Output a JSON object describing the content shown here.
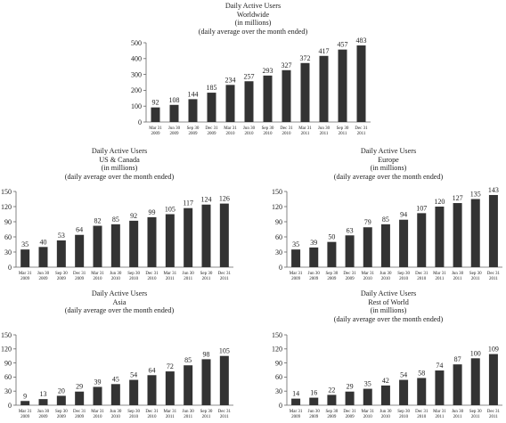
{
  "chart_data": [
    {
      "type": "bar",
      "title": "Daily Active Users",
      "subtitle": [
        "Worldwide",
        "(in millions)",
        "(daily average over the month ended)"
      ],
      "categories": [
        [
          "Mar 31",
          "2009"
        ],
        [
          "Jun 30",
          "2009"
        ],
        [
          "Sep 30",
          "2009"
        ],
        [
          "Dec 31",
          "2009"
        ],
        [
          "Mar 31",
          "2010"
        ],
        [
          "Jun 30",
          "2010"
        ],
        [
          "Sep 30",
          "2010"
        ],
        [
          "Dec 31",
          "2010"
        ],
        [
          "Mar 31",
          "2011"
        ],
        [
          "Jun 30",
          "2011"
        ],
        [
          "Sep 30",
          "2011"
        ],
        [
          "Dec 31",
          "2011"
        ]
      ],
      "values": [
        92,
        108,
        144,
        185,
        234,
        257,
        293,
        327,
        372,
        417,
        457,
        483
      ],
      "value_labels": [
        "92",
        "108",
        "144",
        "185",
        "234",
        "257",
        "293",
        "327",
        "372",
        "417",
        "457",
        "483"
      ],
      "yticks": [
        "0",
        "100",
        "200",
        "300",
        "400",
        "500"
      ],
      "ylim": [
        0,
        500
      ],
      "grid": false,
      "bar_color": "#333333"
    },
    {
      "type": "bar",
      "title": "Daily Active Users",
      "subtitle": [
        "US & Canada",
        "(in millions)",
        "(daily average over the month ended)"
      ],
      "categories": [
        [
          "Mar 31",
          "2009"
        ],
        [
          "Jun 30",
          "2009"
        ],
        [
          "Sep 30",
          "2009"
        ],
        [
          "Dec 31",
          "2009"
        ],
        [
          "Mar 31",
          "2010"
        ],
        [
          "Jun 30",
          "2010"
        ],
        [
          "Sep 30",
          "2010"
        ],
        [
          "Dec 31",
          "2010"
        ],
        [
          "Mar 31",
          "2011"
        ],
        [
          "Jun 30",
          "2011"
        ],
        [
          "Sep 30",
          "2011"
        ],
        [
          "Dec 31",
          "2011"
        ]
      ],
      "values": [
        35,
        40,
        53,
        64,
        82,
        85,
        92,
        99,
        105,
        117,
        124,
        126
      ],
      "value_labels": [
        "35",
        "40",
        "53",
        "64",
        "82",
        "85",
        "92",
        "99",
        "105",
        "117",
        "124",
        "126"
      ],
      "yticks": [
        "0",
        "30",
        "60",
        "90",
        "120",
        "150"
      ],
      "ylim": [
        0,
        150
      ],
      "grid": false,
      "bar_color": "#333333"
    },
    {
      "type": "bar",
      "title": "Daily Active Users",
      "subtitle": [
        "Europe",
        "(in millions)",
        "(daily average over the month ended)"
      ],
      "categories": [
        [
          "Mar 31",
          "2009"
        ],
        [
          "Jun 30",
          "2009"
        ],
        [
          "Sep 30",
          "2009"
        ],
        [
          "Dec 31",
          "2009"
        ],
        [
          "Mar 31",
          "2010"
        ],
        [
          "Jun 30",
          "2010"
        ],
        [
          "Sep 30",
          "2010"
        ],
        [
          "Dec 31",
          "2010"
        ],
        [
          "Mar 31",
          "2011"
        ],
        [
          "Jun 30",
          "2011"
        ],
        [
          "Sep 30",
          "2011"
        ],
        [
          "Dec 31",
          "2011"
        ]
      ],
      "values": [
        35,
        39,
        50,
        63,
        79,
        85,
        94,
        107,
        120,
        127,
        135,
        143
      ],
      "value_labels": [
        "35",
        "39",
        "50",
        "63",
        "79",
        "85",
        "94",
        "107",
        "120",
        "127",
        "135",
        "143"
      ],
      "yticks": [
        "0",
        "30",
        "60",
        "90",
        "120",
        "150"
      ],
      "ylim": [
        0,
        150
      ],
      "grid": false,
      "bar_color": "#333333"
    },
    {
      "type": "bar",
      "title": "Daily Active Users",
      "subtitle": [
        "Asia",
        "(in millions)",
        "(daily average over the month ended)"
      ],
      "categories": [
        [
          "Mar 31",
          "2009"
        ],
        [
          "Jun 30",
          "2009"
        ],
        [
          "Sep 30",
          "2009"
        ],
        [
          "Dec 31",
          "2009"
        ],
        [
          "Mar 31",
          "2010"
        ],
        [
          "Jun 30",
          "2010"
        ],
        [
          "Sep 30",
          "2010"
        ],
        [
          "Dec 31",
          "2010"
        ],
        [
          "Mar 31",
          "2011"
        ],
        [
          "Jun 30",
          "2011"
        ],
        [
          "Sep 30",
          "2011"
        ],
        [
          "Dec 31",
          "2011"
        ]
      ],
      "values": [
        9,
        13,
        20,
        29,
        39,
        45,
        54,
        64,
        72,
        85,
        98,
        105
      ],
      "value_labels": [
        "9",
        "13",
        "20",
        "29",
        "39",
        "45",
        "54",
        "64",
        "72",
        "85",
        "98",
        "105"
      ],
      "yticks": [
        "0",
        "30",
        "60",
        "90",
        "120",
        "150"
      ],
      "ylim": [
        0,
        150
      ],
      "grid": false,
      "bar_color": "#333333"
    },
    {
      "type": "bar",
      "title": "Daily Active Users",
      "subtitle": [
        "Rest of World",
        "(in millions)",
        "(daily average over the month ended)"
      ],
      "categories": [
        [
          "Mar 31",
          "2009"
        ],
        [
          "Jun 30",
          "2009"
        ],
        [
          "Sep 30",
          "2009"
        ],
        [
          "Dec 31",
          "2009"
        ],
        [
          "Mar 31",
          "2010"
        ],
        [
          "Jun 30",
          "2010"
        ],
        [
          "Sep 30",
          "2010"
        ],
        [
          "Dec 31",
          "2010"
        ],
        [
          "Mar 31",
          "2011"
        ],
        [
          "Jun 30",
          "2011"
        ],
        [
          "Sep 30",
          "2011"
        ],
        [
          "Dec 31",
          "2011"
        ]
      ],
      "values": [
        14,
        16,
        22,
        29,
        35,
        42,
        54,
        58,
        74,
        87,
        100,
        109
      ],
      "value_labels": [
        "14",
        "16",
        "22",
        "29",
        "35",
        "42",
        "54",
        "58",
        "74",
        "87",
        "100",
        "109"
      ],
      "yticks": [
        "0",
        "30",
        "60",
        "90",
        "120",
        "150"
      ],
      "ylim": [
        0,
        150
      ],
      "grid": false,
      "bar_color": "#333333"
    }
  ]
}
